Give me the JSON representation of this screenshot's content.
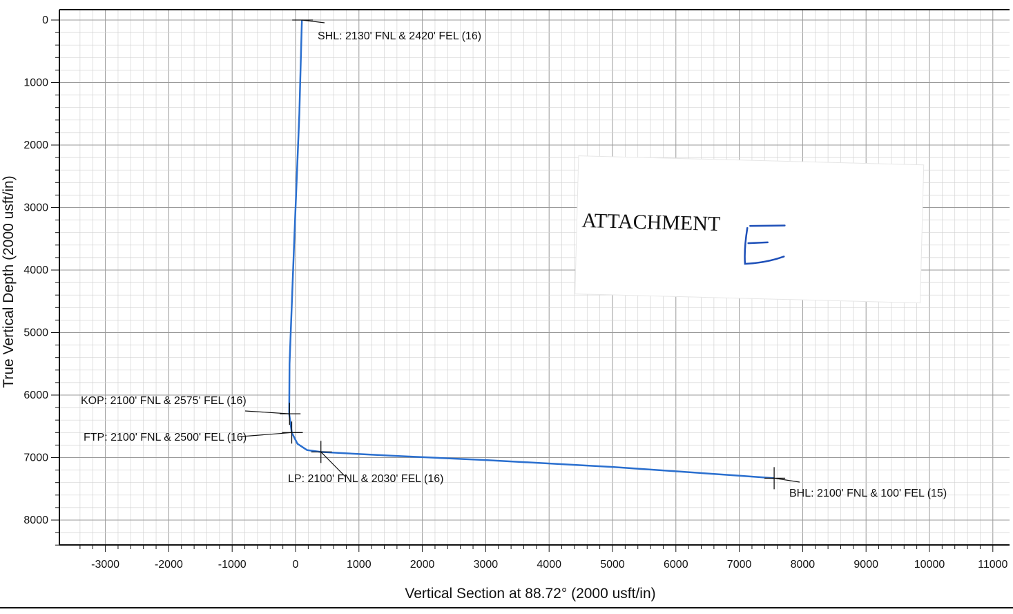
{
  "chart_data": {
    "type": "line",
    "xlabel": "Vertical Section at 88.72° (2000 usft/in)",
    "ylabel": "True Vertical Depth (2000 usft/in)",
    "xlim": [
      -3500,
      11000
    ],
    "ylim": [
      0,
      8400
    ],
    "y_inverted": true,
    "grid": true,
    "x_ticks": [
      -3000,
      -2000,
      -1000,
      0,
      1000,
      2000,
      3000,
      4000,
      5000,
      6000,
      7000,
      8000,
      9000,
      10000,
      11000
    ],
    "x_tick_labels": [
      "-3000",
      "-2000",
      "-1000",
      "0",
      "1000",
      "2000",
      "3000",
      "4000",
      "5000",
      "6000",
      "7000",
      "8000",
      "9000",
      "10000",
      "11000"
    ],
    "y_ticks": [
      0,
      1000,
      2000,
      3000,
      4000,
      5000,
      6000,
      7000,
      8000
    ],
    "y_tick_labels": [
      "0",
      "1000",
      "2000",
      "3000",
      "4000",
      "5000",
      "6000",
      "7000",
      "8000"
    ],
    "series": [
      {
        "color": "#2a6fcf",
        "x": [
          100,
          60,
          -20,
          -95,
          -100,
          -60,
          30,
          180,
          400,
          1500,
          3000,
          5000,
          7000,
          7550
        ],
        "y": [
          0,
          1500,
          3500,
          5500,
          6300,
          6600,
          6780,
          6880,
          6910,
          6970,
          7040,
          7150,
          7290,
          7330
        ]
      }
    ],
    "annotations": [
      {
        "id": "shl",
        "label": "SHL: 2130' FNL & 2420' FEL (16)",
        "x": 100,
        "y": 0
      },
      {
        "id": "kop",
        "label": "KOP: 2100' FNL & 2575' FEL (16)",
        "x": -95,
        "y": 6300
      },
      {
        "id": "ftp",
        "label": "FTP: 2100' FNL & 2500' FEL (16)",
        "x": -60,
        "y": 6600
      },
      {
        "id": "lp",
        "label": "LP: 2100' FNL & 2030' FEL (16)",
        "x": 400,
        "y": 6910
      },
      {
        "id": "bhl",
        "label": "BHL: 2100' FNL & 100' FEL (15)",
        "x": 7550,
        "y": 7330
      }
    ]
  },
  "attachment_label": {
    "text": "ATTACHMENT",
    "handwritten_mark": "E"
  }
}
